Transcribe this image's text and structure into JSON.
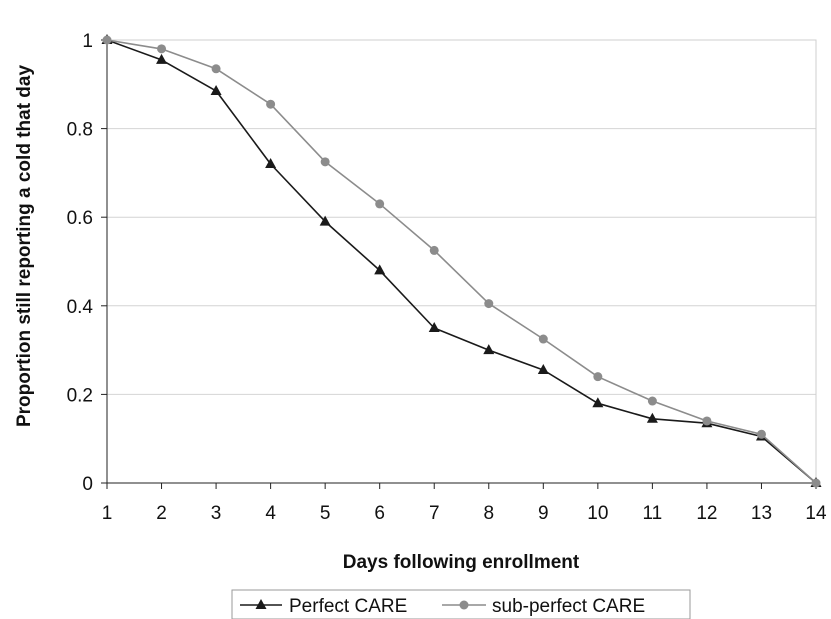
{
  "chart_data": {
    "type": "line",
    "title": "",
    "xlabel": "Days following enrollment",
    "ylabel": "Proportion still reporting a cold that day",
    "x": [
      1,
      2,
      3,
      4,
      5,
      6,
      7,
      8,
      9,
      10,
      11,
      12,
      13,
      14
    ],
    "x_ticks": [
      "1",
      "2",
      "3",
      "4",
      "5",
      "6",
      "7",
      "8",
      "9",
      "10",
      "11",
      "12",
      "13",
      "14"
    ],
    "xlim": [
      1,
      14
    ],
    "ylim": [
      0,
      1
    ],
    "y_ticks": [
      "0",
      "0.2",
      "0.4",
      "0.6",
      "0.8",
      "1"
    ],
    "y_tick_values": [
      0,
      0.2,
      0.4,
      0.6,
      0.8,
      1
    ],
    "grid": "horizontal",
    "legend_position": "bottom-center",
    "series": [
      {
        "name": "Perfect CARE",
        "marker": "triangle",
        "color": "#1a1a1a",
        "values": [
          1.0,
          0.955,
          0.885,
          0.72,
          0.59,
          0.48,
          0.35,
          0.3,
          0.255,
          0.18,
          0.145,
          0.135,
          0.105,
          0.0
        ]
      },
      {
        "name": "sub-perfect CARE",
        "marker": "circle",
        "color": "#8c8c8c",
        "values": [
          1.0,
          0.98,
          0.935,
          0.855,
          0.725,
          0.63,
          0.525,
          0.405,
          0.325,
          0.24,
          0.185,
          0.14,
          0.11,
          0.0
        ]
      }
    ]
  }
}
